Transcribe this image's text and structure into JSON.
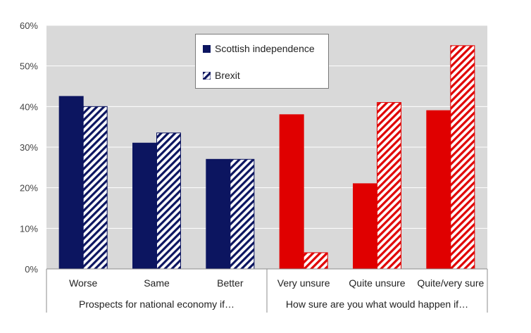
{
  "chart_data": {
    "type": "bar",
    "categories": [
      "Worse",
      "Same",
      "Better",
      "Very unsure",
      "Quite unsure",
      "Quite/very sure"
    ],
    "groups": [
      {
        "label": "Prospects for national economy if…",
        "categories": [
          "Worse",
          "Same",
          "Better"
        ],
        "color": "#0c1560"
      },
      {
        "label": "How sure are you what would happen if…",
        "categories": [
          "Very unsure",
          "Quite unsure",
          "Quite/very sure"
        ],
        "color": "#e00000"
      }
    ],
    "series": [
      {
        "name": "Scottish independence",
        "pattern": "solid",
        "values": [
          42.5,
          31,
          27,
          38,
          21,
          39
        ]
      },
      {
        "name": "Brexit",
        "pattern": "hatched",
        "values": [
          40,
          33.5,
          27,
          4,
          41,
          55
        ]
      }
    ],
    "ylim": [
      0,
      60
    ],
    "yticks": [
      "0%",
      "10%",
      "20%",
      "30%",
      "40%",
      "50%",
      "60%"
    ],
    "grid": true,
    "legend_placement": "top-center",
    "plot_background": "#d9d9d9",
    "gridline_color": "#ffffff",
    "xlabel": "",
    "ylabel": "",
    "title": ""
  }
}
